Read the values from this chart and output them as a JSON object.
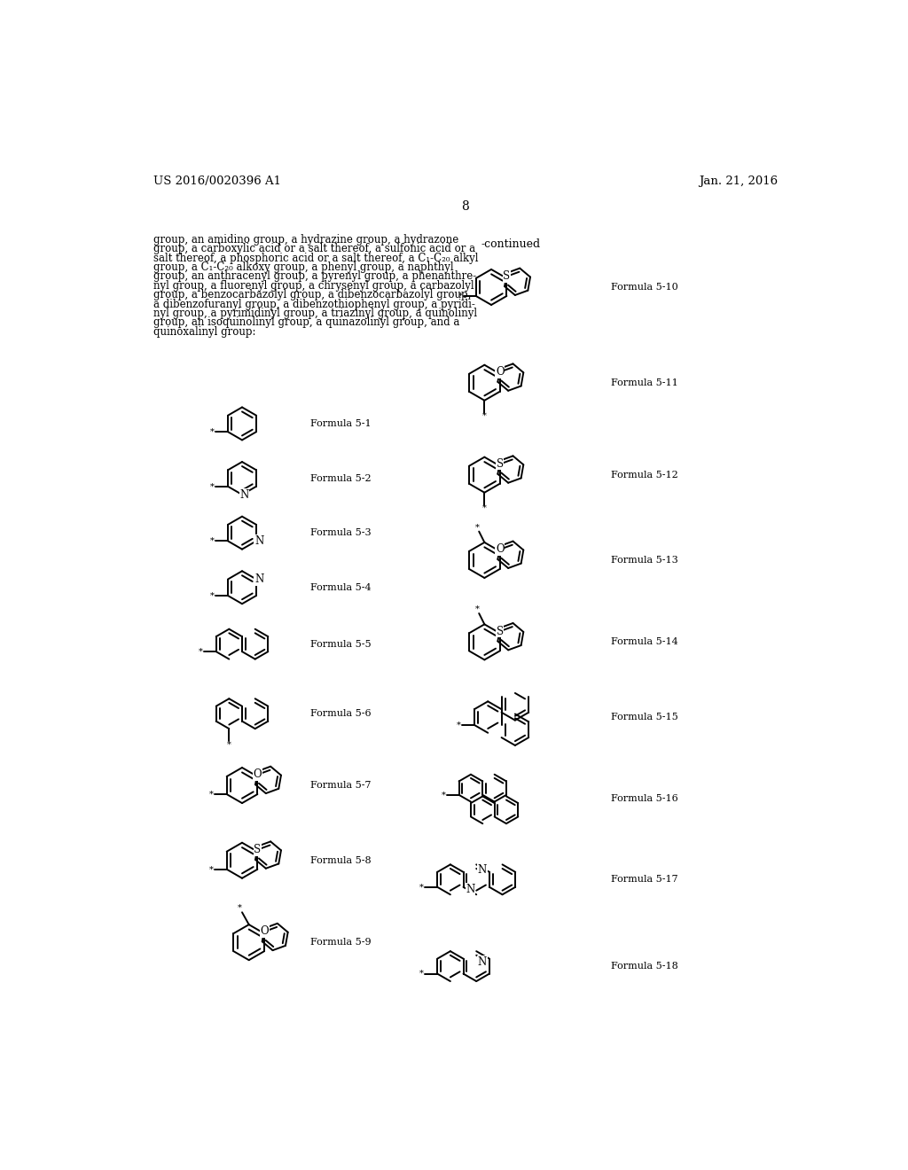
{
  "bg_color": "#ffffff",
  "header_left": "US 2016/0020396 A1",
  "header_right": "Jan. 21, 2016",
  "page_num": "8",
  "continued": "-continued",
  "body_text_lines": [
    "group, an amidino group, a hydrazine group, a hydrazone",
    "group, a carboxylic acid or a salt thereof, a sulfonic acid or a",
    "salt thereof, a phosphoric acid or a salt thereof, a C₁-C₂₀ alkyl",
    "group, a C₁-C₂₀ alkoxy group, a phenyl group, a naphthyl",
    "group, an anthracenyl group, a pyrenyl group, a phenanthre-",
    "nyl group, a fluorenyl group, a chrysenyl group, a carbazolyl",
    "group, a benzocarbazolyl group, a dibenzocarbazolyl group,",
    "a dibenzofuranyl group, a dibenzothiophenyl group, a pyridi-",
    "nyl group, a pyrimidinyl group, a triazinyl group, a quinolinyl",
    "group, an isoquinolinyl group, a quinazolinyl group, and a",
    "quinoxalinyl group:"
  ]
}
